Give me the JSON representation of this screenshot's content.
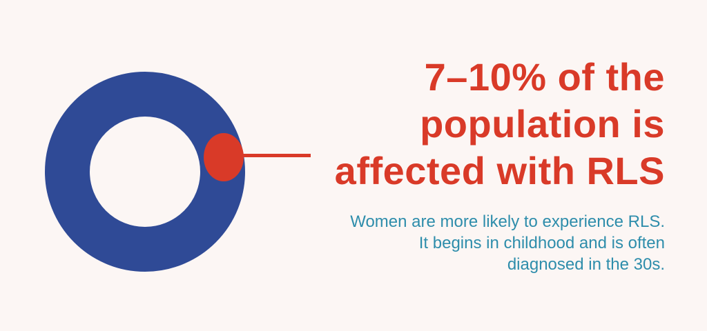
{
  "colors": {
    "background": "#fcf6f4",
    "ring_blue": "#2f4a96",
    "accent_red": "#d93a28",
    "subtitle_teal": "#2e8dab"
  },
  "headline": {
    "lines": [
      "7–10% of the",
      "population is",
      "affected with RLS"
    ]
  },
  "subtitle": {
    "lines": [
      "Women are more likely to experience RLS.",
      "It begins in childhood and is often",
      "diagnosed in the 30s."
    ]
  },
  "chart_data": {
    "type": "pie",
    "subtype": "donut",
    "title": "7–10% of the population is affected with RLS",
    "annotation": "Women are more likely to experience RLS. It begins in childhood and is often diagnosed in the 30s.",
    "segments": [
      {
        "label": "Population affected with RLS",
        "value_pct_min": 7,
        "value_pct_max": 10,
        "color": "#d93a28"
      },
      {
        "label": "Population not affected",
        "value_pct_min": 90,
        "value_pct_max": 93,
        "color": "#2f4a96"
      }
    ],
    "legend_position": "none",
    "marker": "red dot on right side of blue donut ring with callout line pointing to headline"
  }
}
